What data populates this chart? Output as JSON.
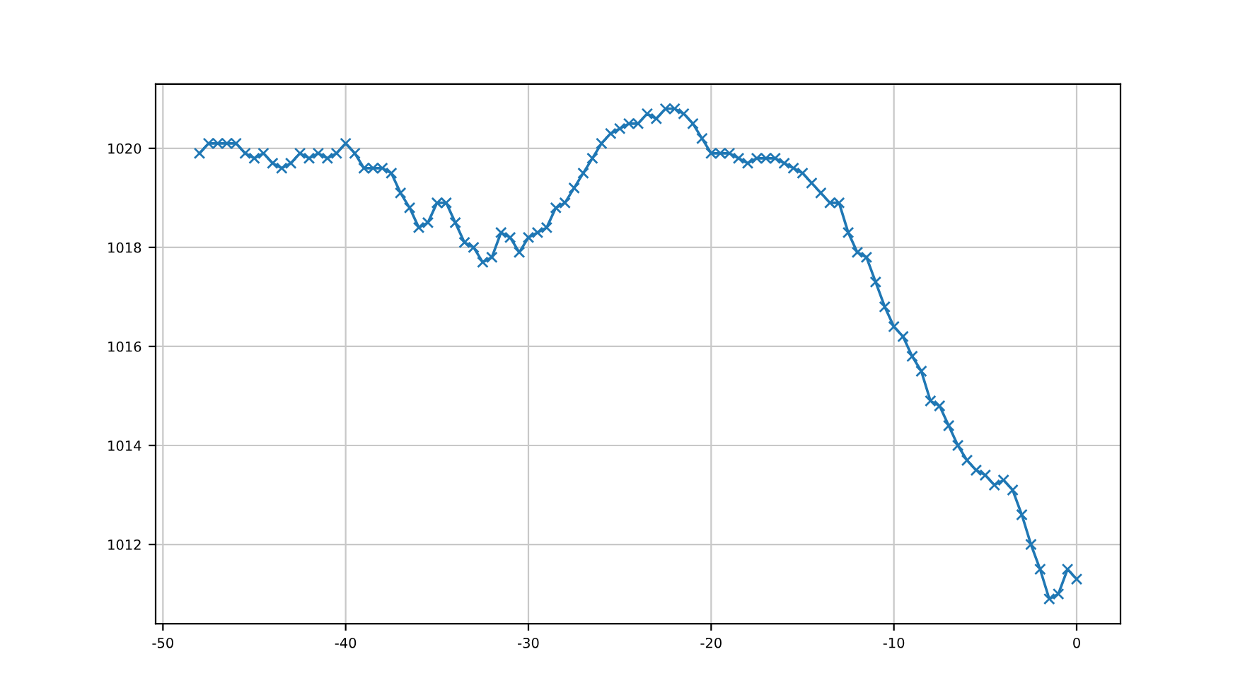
{
  "chart_data": {
    "type": "line",
    "marker": "cross",
    "grid": true,
    "color": "#1f77b4",
    "x": [
      -48,
      -47.5,
      -47,
      -46.5,
      -46,
      -45.5,
      -45,
      -44.5,
      -44,
      -43.5,
      -43,
      -42.5,
      -42,
      -41.5,
      -41,
      -40.5,
      -40,
      -39.5,
      -39,
      -38.5,
      -38,
      -37.5,
      -37,
      -36.5,
      -36,
      -35.5,
      -35,
      -34.5,
      -34,
      -33.5,
      -33,
      -32.5,
      -32,
      -31.5,
      -31,
      -30.5,
      -30,
      -29.5,
      -29,
      -28.5,
      -28,
      -27.5,
      -27,
      -26.5,
      -26,
      -25.5,
      -25,
      -24.5,
      -24,
      -23.5,
      -23,
      -22.5,
      -22,
      -21.5,
      -21,
      -20.5,
      -20,
      -19.5,
      -19,
      -18.5,
      -18,
      -17.5,
      -17,
      -16.5,
      -16,
      -15.5,
      -15,
      -14.5,
      -14,
      -13.5,
      -13,
      -12.5,
      -12,
      -11.5,
      -11,
      -10.5,
      -10,
      -9.5,
      -9,
      -8.5,
      -8,
      -7.5,
      -7,
      -6.5,
      -6,
      -5.5,
      -5,
      -4.5,
      -4,
      -3.5,
      -3,
      -2.5,
      -2,
      -1.5,
      -1,
      -0.5,
      0
    ],
    "values": [
      1019.9,
      1020.1,
      1020.1,
      1020.1,
      1020.1,
      1019.9,
      1019.8,
      1019.9,
      1019.7,
      1019.6,
      1019.7,
      1019.9,
      1019.8,
      1019.9,
      1019.8,
      1019.9,
      1020.1,
      1019.9,
      1019.6,
      1019.6,
      1019.6,
      1019.5,
      1019.1,
      1018.8,
      1018.4,
      1018.5,
      1018.9,
      1018.9,
      1018.5,
      1018.1,
      1018.0,
      1017.7,
      1017.8,
      1018.3,
      1018.2,
      1017.9,
      1018.2,
      1018.3,
      1018.4,
      1018.8,
      1018.9,
      1019.2,
      1019.5,
      1019.8,
      1020.1,
      1020.3,
      1020.4,
      1020.5,
      1020.5,
      1020.7,
      1020.6,
      1020.8,
      1020.8,
      1020.7,
      1020.5,
      1020.2,
      1019.9,
      1019.9,
      1019.9,
      1019.8,
      1019.7,
      1019.8,
      1019.8,
      1019.8,
      1019.7,
      1019.6,
      1019.5,
      1019.3,
      1019.1,
      1018.9,
      1018.9,
      1018.3,
      1017.9,
      1017.8,
      1017.3,
      1016.8,
      1016.4,
      1016.2,
      1015.8,
      1015.5,
      1014.9,
      1014.8,
      1014.4,
      1014.0,
      1013.7,
      1013.5,
      1013.4,
      1013.2,
      1013.3,
      1013.1,
      1012.6,
      1012.0,
      1011.5,
      1010.9,
      1011.0,
      1011.5,
      1011.3
    ],
    "xlim": [
      -50.4,
      2.4
    ],
    "ylim": [
      1010.4,
      1021.3
    ],
    "xticks": [
      -50,
      -40,
      -30,
      -20,
      -10,
      0
    ],
    "yticks": [
      1012,
      1014,
      1016,
      1018,
      1020
    ]
  }
}
